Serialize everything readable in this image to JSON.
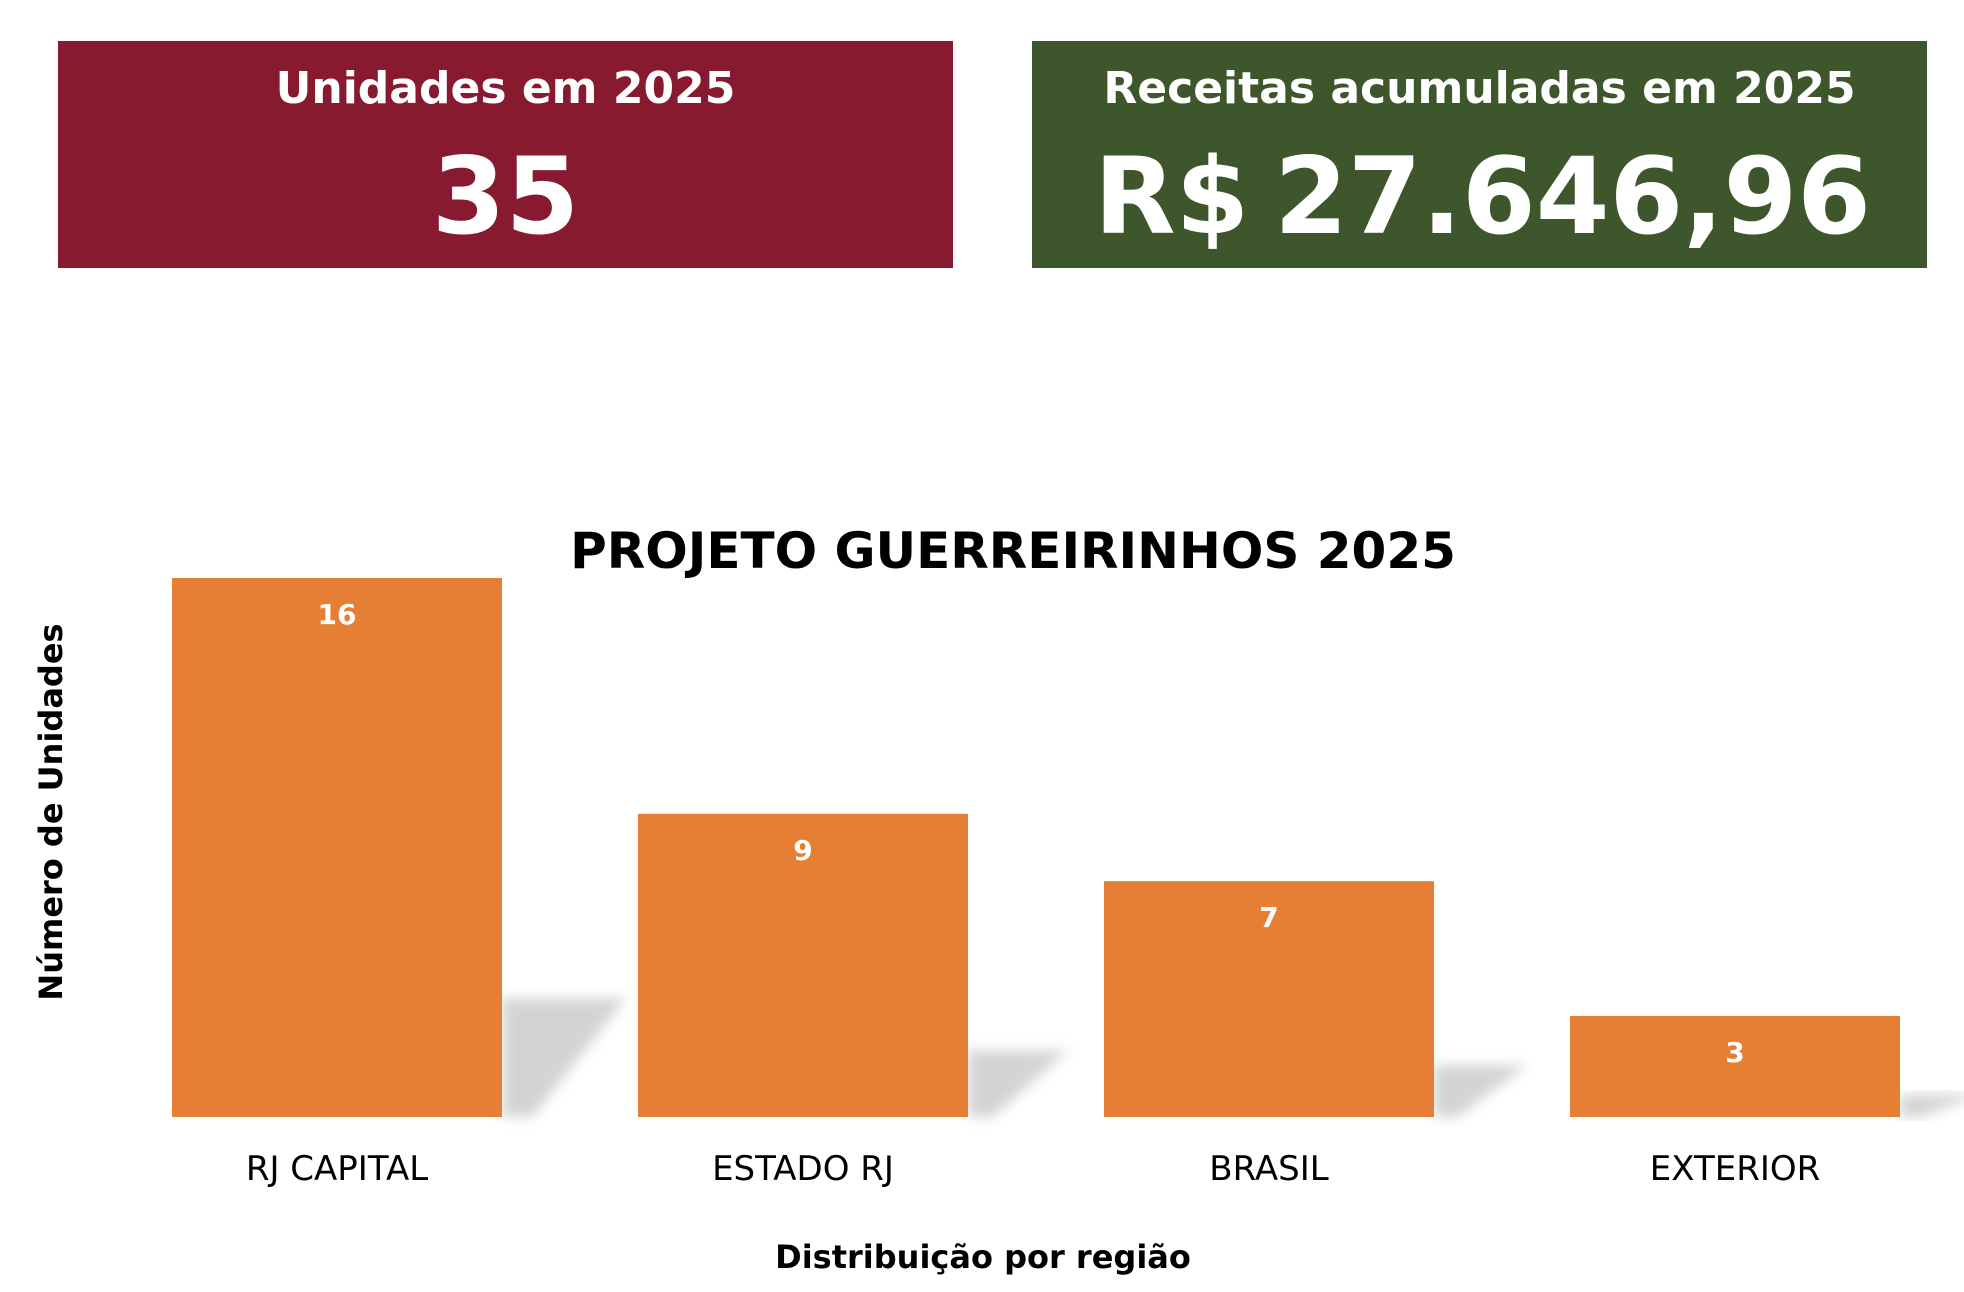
{
  "kpis": {
    "units": {
      "label": "Unidades em 2025",
      "value": "35",
      "color": "#881a2f"
    },
    "revenue": {
      "label": "Receitas acumuladas em 2025",
      "currency": "R$",
      "value": "27.646,96",
      "color": "#3e562b"
    }
  },
  "chart_data": {
    "type": "bar",
    "title": "PROJETO GUERREIRINHOS 2025",
    "xlabel": "Distribuição por região",
    "ylabel": "Número de Unidades",
    "categories": [
      "RJ CAPITAL",
      "ESTADO RJ",
      "BRASIL",
      "EXTERIOR"
    ],
    "values": [
      16,
      9,
      7,
      3
    ],
    "ylim": [
      0,
      16
    ],
    "bar_color": "#e57f33",
    "grid": false,
    "legend": "none"
  }
}
